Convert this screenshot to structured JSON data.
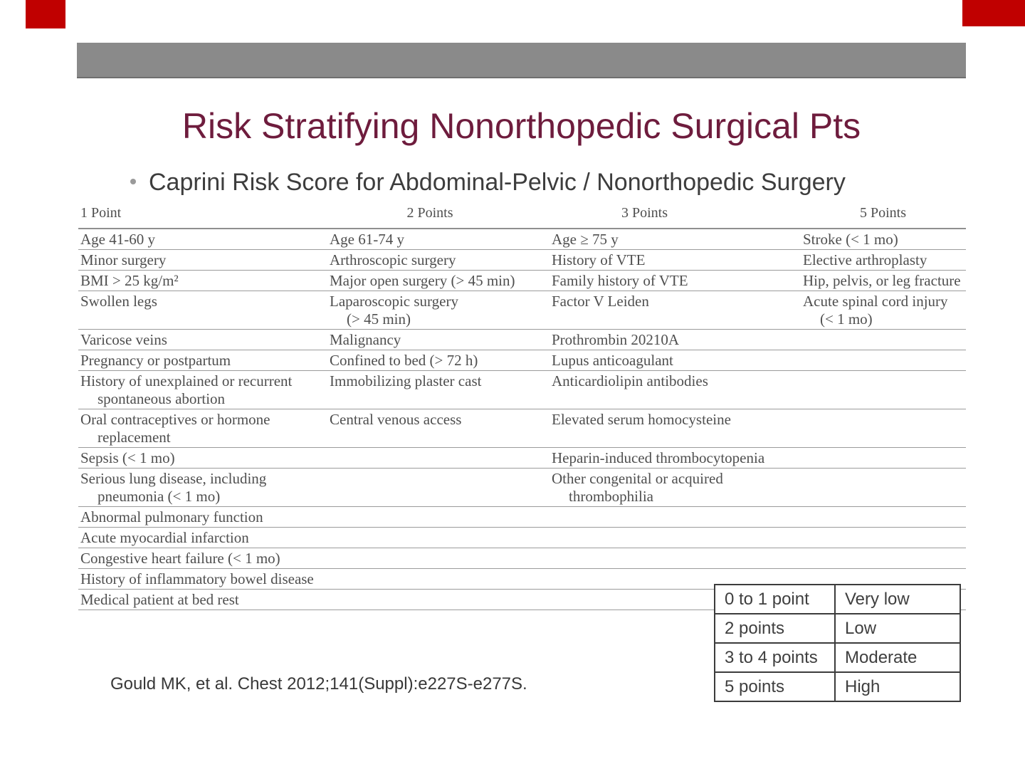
{
  "slide": {
    "title": "Risk Stratifying Nonorthopedic Surgical Pts",
    "bullet": "Caprini Risk Score for Abdominal-Pelvic / Nonorthopedic Surgery",
    "citation": "Gould MK, et al. Chest 2012;141(Suppl):e227S-e277S."
  },
  "colors": {
    "accent_maroon": "#6e1c3d",
    "bar_gray": "#8a8a8a",
    "corner_red": "#c00000",
    "table_rule_gray": "#9b9b9b"
  },
  "caprini_table": {
    "headers": [
      "1 Point",
      "2 Points",
      "3 Points",
      "5 Points"
    ],
    "rows": [
      {
        "cells": [
          {
            "lines": [
              "Age 41-60 y"
            ]
          },
          {
            "lines": [
              "Age 61-74 y"
            ]
          },
          {
            "lines": [
              "Age ≥ 75 y"
            ]
          },
          {
            "lines": [
              "Stroke (< 1 mo)"
            ]
          }
        ]
      },
      {
        "cells": [
          {
            "lines": [
              "Minor surgery"
            ]
          },
          {
            "lines": [
              "Arthroscopic surgery"
            ]
          },
          {
            "lines": [
              "History of VTE"
            ]
          },
          {
            "lines": [
              "Elective arthroplasty"
            ]
          }
        ]
      },
      {
        "cells": [
          {
            "lines": [
              "BMI > 25 kg/m²"
            ]
          },
          {
            "lines": [
              "Major open surgery (> 45 min)"
            ]
          },
          {
            "lines": [
              "Family history of VTE"
            ]
          },
          {
            "lines": [
              "Hip, pelvis, or leg fracture"
            ]
          }
        ]
      },
      {
        "cells": [
          {
            "lines": [
              "Swollen legs"
            ]
          },
          {
            "lines": [
              "Laparoscopic surgery",
              "(> 45 min)"
            ]
          },
          {
            "lines": [
              "Factor V Leiden"
            ]
          },
          {
            "lines": [
              "Acute spinal cord injury",
              "(< 1 mo)"
            ]
          }
        ]
      },
      {
        "cells": [
          {
            "lines": [
              "Varicose veins"
            ]
          },
          {
            "lines": [
              "Malignancy"
            ]
          },
          {
            "lines": [
              "Prothrombin 20210A"
            ]
          },
          {
            "lines": []
          }
        ]
      },
      {
        "cells": [
          {
            "lines": [
              "Pregnancy or postpartum"
            ]
          },
          {
            "lines": [
              "Confined to bed (> 72 h)"
            ]
          },
          {
            "lines": [
              "Lupus anticoagulant"
            ]
          },
          {
            "lines": []
          }
        ]
      },
      {
        "cells": [
          {
            "lines": [
              "History of unexplained or recurrent",
              "spontaneous abortion"
            ]
          },
          {
            "lines": [
              "Immobilizing plaster cast"
            ]
          },
          {
            "lines": [
              "Anticardiolipin antibodies"
            ]
          },
          {
            "lines": []
          }
        ]
      },
      {
        "cells": [
          {
            "lines": [
              "Oral contraceptives or hormone",
              "replacement"
            ]
          },
          {
            "lines": [
              "Central venous access"
            ]
          },
          {
            "lines": [
              "Elevated serum homocysteine"
            ]
          },
          {
            "lines": []
          }
        ]
      },
      {
        "cells": [
          {
            "lines": [
              "Sepsis (< 1 mo)"
            ]
          },
          {
            "lines": []
          },
          {
            "lines": [
              "Heparin-induced thrombocytopenia"
            ]
          },
          {
            "lines": []
          }
        ]
      },
      {
        "cells": [
          {
            "lines": [
              "Serious lung disease, including",
              "pneumonia (< 1 mo)"
            ]
          },
          {
            "lines": []
          },
          {
            "lines": [
              "Other congenital or acquired",
              "thrombophilia"
            ]
          },
          {
            "lines": []
          }
        ]
      },
      {
        "cells": [
          {
            "lines": [
              "Abnormal pulmonary function"
            ]
          },
          {
            "lines": []
          },
          {
            "lines": []
          },
          {
            "lines": []
          }
        ]
      },
      {
        "cells": [
          {
            "lines": [
              "Acute myocardial infarction"
            ]
          },
          {
            "lines": []
          },
          {
            "lines": []
          },
          {
            "lines": []
          }
        ]
      },
      {
        "cells": [
          {
            "lines": [
              "Congestive heart failure (< 1 mo)"
            ]
          },
          {
            "lines": []
          },
          {
            "lines": []
          },
          {
            "lines": []
          }
        ]
      },
      {
        "cells": [
          {
            "lines": [
              "History of inflammatory bowel disease"
            ]
          },
          {
            "lines": []
          },
          {
            "lines": []
          },
          {
            "lines": []
          }
        ]
      },
      {
        "cells": [
          {
            "lines": [
              "Medical patient at bed rest"
            ]
          },
          {
            "lines": []
          },
          {
            "lines": []
          },
          {
            "lines": []
          }
        ]
      }
    ]
  },
  "risk_table": {
    "rows": [
      {
        "points": "0 to 1 point",
        "risk": "Very low"
      },
      {
        "points": "2 points",
        "risk": "Low"
      },
      {
        "points": "3 to 4 points",
        "risk": "Moderate"
      },
      {
        "points": "5 points",
        "risk": "High"
      }
    ]
  }
}
